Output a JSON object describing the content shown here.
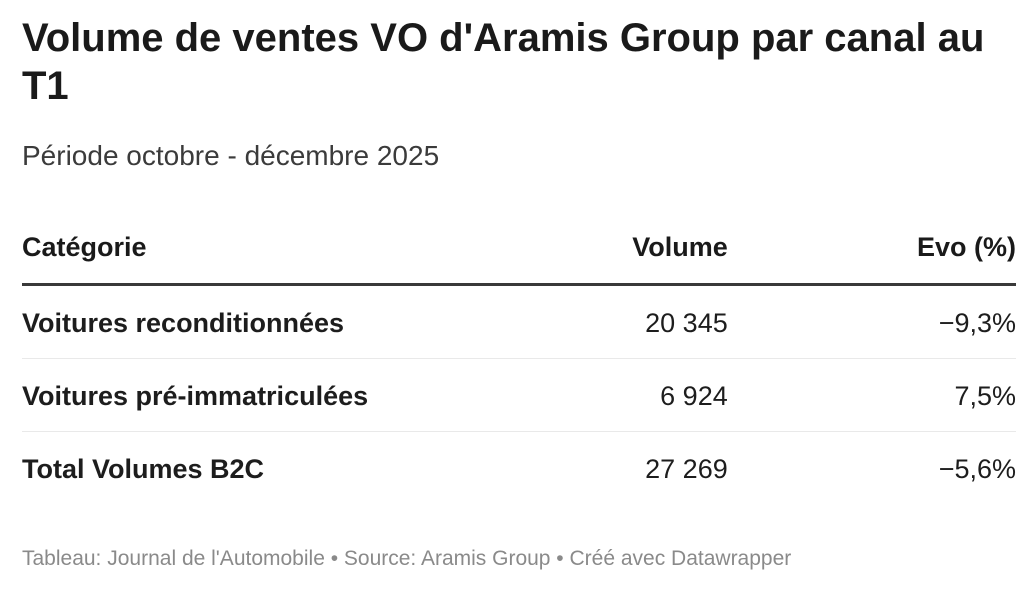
{
  "header": {
    "title": "Volume de ventes VO d'Aramis Group par canal au T1",
    "subtitle": "Période octobre - décembre 2025"
  },
  "table": {
    "columns": {
      "category": "Catégorie",
      "volume": "Volume",
      "evo": "Evo (%)"
    },
    "rows": [
      {
        "category": "Voitures reconditionnées",
        "volume": "20 345",
        "evo": "−9,3%"
      },
      {
        "category": "Voitures pré-immatriculées",
        "volume": "6 924",
        "evo": "7,5%"
      },
      {
        "category": "Total Volumes B2C",
        "volume": "27 269",
        "evo": "−5,6%"
      }
    ]
  },
  "footer": {
    "text": "Tableau: Journal de l'Automobile • Source: Aramis Group • Créé avec Datawrapper"
  },
  "colors": {
    "title": "#1a1a1a",
    "body_text": "#1d1d1d",
    "subtitle_text": "#3b3b3b",
    "header_rule": "#393939",
    "row_rule": "#e9e9e9",
    "footer_text": "#8a8a8a",
    "background": "#ffffff"
  },
  "chart_data": {
    "type": "table",
    "title": "Volume de ventes VO d'Aramis Group par canal au T1",
    "subtitle": "Période octobre - décembre 2025",
    "columns": [
      "Catégorie",
      "Volume",
      "Evo (%)"
    ],
    "rows": [
      [
        "Voitures reconditionnées",
        20345,
        -9.3
      ],
      [
        "Voitures pré-immatriculées",
        6924,
        7.5
      ],
      [
        "Total Volumes B2C",
        27269,
        -5.6
      ]
    ],
    "notes": "Tableau: Journal de l'Automobile • Source: Aramis Group • Créé avec Datawrapper"
  }
}
